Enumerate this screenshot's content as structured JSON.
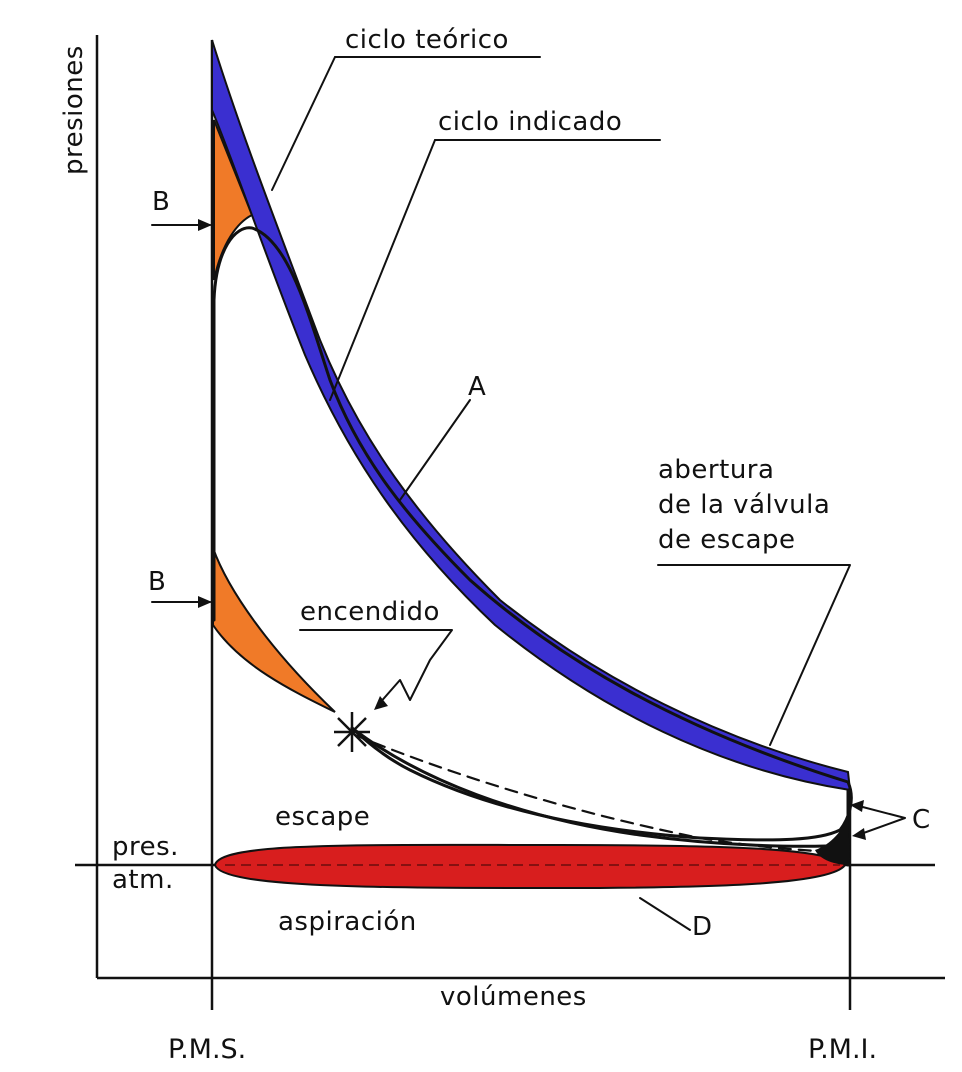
{
  "labels": {
    "y_axis": "presiones",
    "x_axis": "volúmenes",
    "pms": "P.M.S.",
    "pmi": "P.M.I.",
    "ciclo_teorico": "ciclo teórico",
    "ciclo_indicado": "ciclo indicado",
    "point_a": "A",
    "point_b_top": "B",
    "point_b_bottom": "B",
    "point_c": "C",
    "point_d": "D",
    "abertura_line1": "abertura",
    "abertura_line2": "de la válvula",
    "abertura_line3": "de escape",
    "encendido": "encendido",
    "escape": "escape",
    "pres_line1": "pres.",
    "pres_line2": "atm.",
    "aspiracion": "aspiración"
  },
  "colors": {
    "theoretical_band": "#3a2fd0",
    "loss_area_b": "#f07a28",
    "pumping_area_d": "#d81e1e",
    "ink": "#111111",
    "background": "#ffffff"
  }
}
